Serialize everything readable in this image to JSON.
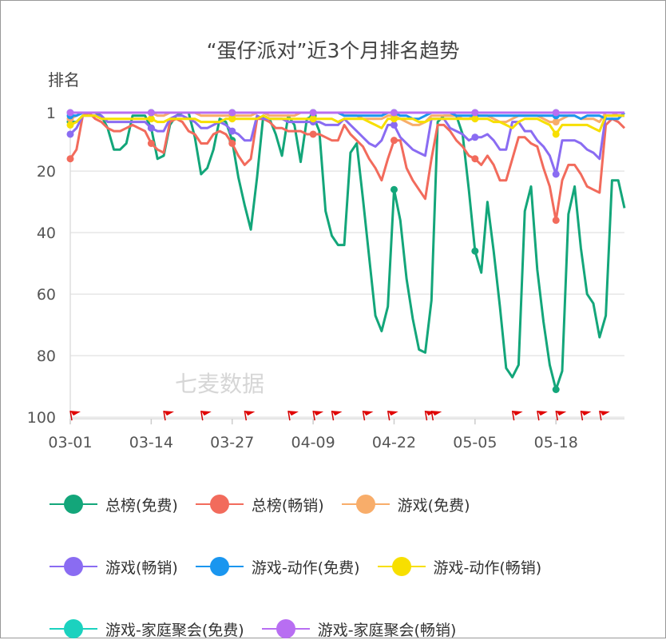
{
  "chart_data": {
    "type": "line",
    "title": "“蛋仔派对”近3个月排名趋势",
    "ylabel": "排名",
    "xlabel": "",
    "y_inverted": true,
    "ylim": [
      1,
      100
    ],
    "yticks": [
      "1",
      "20",
      "40",
      "60",
      "80",
      "100"
    ],
    "ytick_values": [
      1,
      20,
      40,
      60,
      80,
      100
    ],
    "xticks": [
      "03-01",
      "03-14",
      "03-27",
      "04-09",
      "04-22",
      "05-05",
      "05-18"
    ],
    "xtick_days": [
      0,
      13,
      26,
      39,
      52,
      65,
      78
    ],
    "x_start": "03-01",
    "num_days": 90,
    "watermark": "七麦数据",
    "legend_position": "bottom",
    "event_flag_days": [
      0,
      15,
      21,
      28,
      35,
      39,
      42,
      47,
      51,
      57,
      58,
      71,
      75,
      78,
      82,
      85
    ],
    "series": [
      {
        "name": "总榜(免费)",
        "color": "#13a67a",
        "values": [
          4,
          4,
          2,
          1,
          1,
          2,
          6,
          13,
          13,
          11,
          2,
          2,
          2,
          6,
          16,
          15,
          5,
          2,
          1,
          1,
          9,
          21,
          19,
          13,
          3,
          4,
          10,
          22,
          31,
          39,
          22,
          2,
          3,
          8,
          15,
          2,
          5,
          17,
          3,
          2,
          7,
          33,
          41,
          44,
          44,
          14,
          11,
          29,
          48,
          67,
          72,
          64,
          26,
          36,
          55,
          68,
          78,
          79,
          62,
          4,
          2,
          2,
          2,
          8,
          26,
          46,
          53,
          30,
          46,
          64,
          84,
          87,
          83,
          33,
          25,
          52,
          69,
          83,
          91,
          85,
          34,
          25,
          45,
          60,
          63,
          74,
          67,
          23,
          23,
          32
        ]
      },
      {
        "name": "总榜(畅销)",
        "color": "#f26b5c",
        "values": [
          16,
          13,
          2,
          1,
          3,
          4,
          6,
          7,
          7,
          6,
          5,
          6,
          7,
          11,
          13,
          14,
          4,
          3,
          4,
          7,
          8,
          11,
          11,
          8,
          7,
          8,
          11,
          15,
          18,
          16,
          3,
          3,
          4,
          6,
          6,
          7,
          7,
          7,
          8,
          8,
          8,
          9,
          10,
          10,
          5,
          8,
          10,
          12,
          16,
          19,
          23,
          16,
          10,
          10,
          19,
          23,
          26,
          29,
          16,
          5,
          5,
          7,
          10,
          12,
          15,
          16,
          18,
          15,
          18,
          23,
          23,
          16,
          9,
          9,
          11,
          12,
          19,
          25,
          36,
          23,
          18,
          18,
          21,
          25,
          26,
          27,
          5,
          3,
          4,
          6
        ]
      },
      {
        "name": "游戏(免费)",
        "color": "#f8ad6a",
        "values": [
          3,
          2,
          1,
          1,
          1,
          1,
          1,
          1,
          1,
          1,
          1,
          1,
          1,
          1,
          2,
          2,
          1,
          1,
          1,
          1,
          1,
          2,
          2,
          2,
          2,
          2,
          2,
          2,
          2,
          2,
          1,
          1,
          2,
          2,
          2,
          2,
          2,
          1,
          1,
          1,
          1,
          1,
          1,
          1,
          2,
          2,
          2,
          3,
          3,
          3,
          3,
          2,
          2,
          3,
          4,
          5,
          5,
          4,
          2,
          2,
          2,
          2,
          2,
          3,
          3,
          2,
          2,
          2,
          3,
          4,
          4,
          3,
          2,
          2,
          2,
          2,
          3,
          4,
          4,
          3,
          2,
          2,
          3,
          3,
          3,
          4,
          1,
          1,
          2,
          2
        ]
      },
      {
        "name": "游戏(畅销)",
        "color": "#8a6cf2",
        "values": [
          8,
          6,
          2,
          2,
          2,
          2,
          4,
          4,
          4,
          4,
          4,
          4,
          4,
          6,
          7,
          7,
          3,
          2,
          2,
          3,
          4,
          6,
          6,
          5,
          4,
          5,
          7,
          8,
          10,
          10,
          2,
          3,
          3,
          3,
          3,
          4,
          4,
          4,
          4,
          4,
          4,
          5,
          5,
          5,
          3,
          5,
          7,
          9,
          11,
          12,
          10,
          5,
          5,
          9,
          11,
          13,
          14,
          15,
          3,
          3,
          3,
          6,
          7,
          8,
          10,
          9,
          9,
          8,
          10,
          13,
          13,
          4,
          4,
          7,
          7,
          10,
          12,
          15,
          21,
          10,
          10,
          10,
          11,
          13,
          14,
          16,
          2,
          2,
          2,
          2
        ]
      },
      {
        "name": "游戏-动作(免费)",
        "color": "#1a96ef",
        "values": [
          2,
          2,
          1,
          1,
          1,
          1,
          1,
          1,
          1,
          1,
          1,
          1,
          1,
          1,
          1,
          1,
          1,
          1,
          1,
          1,
          1,
          1,
          1,
          1,
          1,
          1,
          1,
          1,
          1,
          1,
          1,
          1,
          1,
          1,
          1,
          1,
          1,
          1,
          1,
          1,
          1,
          1,
          1,
          1,
          2,
          2,
          2,
          2,
          2,
          2,
          2,
          1,
          1,
          2,
          2,
          3,
          3,
          2,
          1,
          1,
          1,
          1,
          2,
          2,
          2,
          2,
          2,
          2,
          2,
          2,
          2,
          2,
          2,
          2,
          2,
          2,
          2,
          2,
          2,
          2,
          2,
          2,
          3,
          2,
          2,
          2,
          3,
          3,
          3,
          1
        ]
      },
      {
        "name": "游戏-动作(畅销)",
        "color": "#f7df00",
        "values": [
          5,
          4,
          2,
          2,
          2,
          3,
          3,
          3,
          3,
          3,
          3,
          3,
          3,
          3,
          4,
          4,
          3,
          3,
          3,
          3,
          3,
          4,
          4,
          4,
          4,
          3,
          3,
          3,
          3,
          3,
          3,
          2,
          3,
          3,
          3,
          3,
          3,
          3,
          3,
          3,
          3,
          3,
          3,
          4,
          3,
          3,
          3,
          3,
          4,
          5,
          6,
          3,
          3,
          3,
          3,
          3,
          4,
          4,
          3,
          3,
          3,
          3,
          3,
          3,
          3,
          3,
          3,
          3,
          4,
          4,
          5,
          6,
          4,
          3,
          3,
          3,
          4,
          5,
          8,
          5,
          5,
          5,
          5,
          5,
          6,
          7,
          2,
          2,
          2,
          2
        ]
      },
      {
        "name": "游戏-家庭聚会(免费)",
        "color": "#1bd2bf",
        "values": [
          1,
          1,
          1,
          1,
          1,
          1,
          1,
          1,
          1,
          1,
          1,
          1,
          1,
          1,
          1,
          1,
          1,
          1,
          1,
          1,
          1,
          1,
          1,
          1,
          1,
          1,
          1,
          1,
          1,
          1,
          1,
          1,
          1,
          1,
          1,
          1,
          1,
          1,
          1,
          1,
          1,
          1,
          1,
          1,
          1,
          1,
          1,
          1,
          1,
          1,
          1,
          1,
          1,
          1,
          1,
          1,
          1,
          1,
          1,
          1,
          1,
          1,
          1,
          1,
          1,
          1,
          1,
          1,
          1,
          1,
          1,
          1,
          1,
          1,
          1,
          1,
          1,
          1,
          1,
          1,
          1,
          1,
          1,
          1,
          1,
          1,
          1,
          1,
          1,
          1
        ]
      },
      {
        "name": "游戏-家庭聚会(畅销)",
        "color": "#b86ef2",
        "values": [
          1,
          1,
          1,
          1,
          1,
          1,
          1,
          1,
          1,
          1,
          1,
          1,
          1,
          1,
          1,
          1,
          1,
          1,
          1,
          1,
          1,
          1,
          1,
          1,
          1,
          1,
          1,
          1,
          1,
          1,
          1,
          1,
          1,
          1,
          1,
          1,
          1,
          1,
          1,
          1,
          1,
          1,
          1,
          1,
          1,
          1,
          1,
          1,
          1,
          1,
          1,
          1,
          1,
          1,
          1,
          1,
          1,
          1,
          1,
          1,
          1,
          1,
          1,
          1,
          1,
          1,
          1,
          1,
          1,
          1,
          1,
          1,
          1,
          1,
          1,
          1,
          1,
          1,
          1,
          1,
          1,
          1,
          1,
          1,
          1,
          1,
          1,
          1,
          1,
          1
        ]
      }
    ]
  }
}
